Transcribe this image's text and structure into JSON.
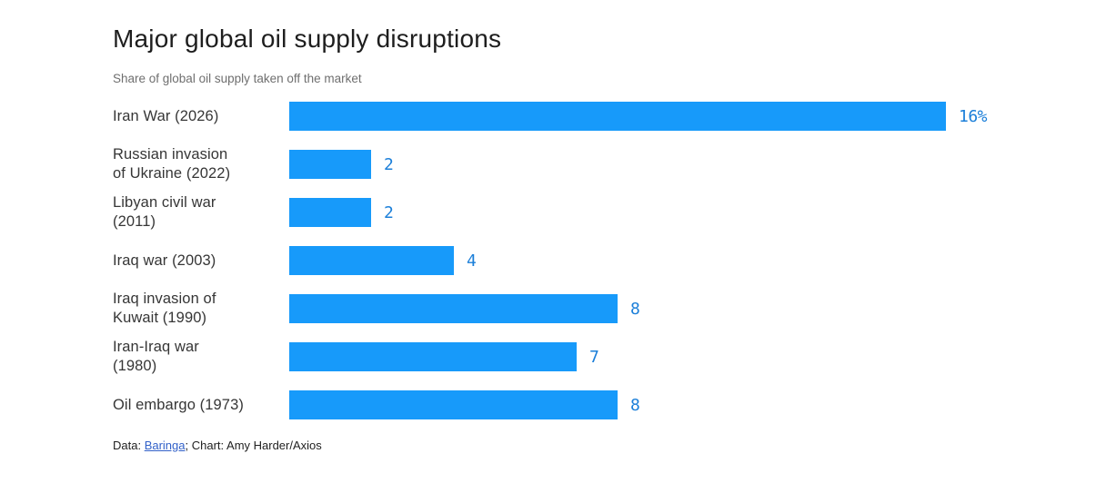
{
  "chart": {
    "title": "Major global oil supply disruptions",
    "subtitle": "Share of global oil supply taken off the market"
  },
  "chart_data": {
    "type": "bar",
    "orientation": "horizontal",
    "title": "Major global oil supply disruptions",
    "subtitle": "Share of global oil supply taken off the market",
    "categories": [
      "Iran War (2026)",
      "Russian invasion of Ukraine (2022)",
      "Libyan civil war (2011)",
      "Iraq war (2003)",
      "Iraq invasion of Kuwait (1990)",
      "Iran-Iraq war (1980)",
      "Oil embargo (1973)"
    ],
    "values": [
      16,
      2,
      2,
      4,
      8,
      7,
      8
    ],
    "value_labels": [
      "16%",
      "2",
      "2",
      "4",
      "8",
      "7",
      "8"
    ],
    "label_lines": [
      [
        "Iran War (2026)"
      ],
      [
        "Russian invasion",
        "of Ukraine (2022)"
      ],
      [
        "Libyan civil war",
        "(2011)"
      ],
      [
        "Iraq war (2003)"
      ],
      [
        "Iraq invasion of",
        "Kuwait (1990)"
      ],
      [
        "Iran-Iraq war",
        "(1980)"
      ],
      [
        "Oil embargo (1973)"
      ]
    ],
    "xlim": [
      0,
      16
    ],
    "grid": false,
    "legend": false,
    "axis_ticks_visible": false,
    "bar_color": "#179afa",
    "value_label_color": "#1b7fd9"
  },
  "footer": {
    "data_prefix": "Data: ",
    "source_link": "Baringa",
    "suffix": "; Chart: Amy Harder/Axios"
  },
  "colors": {
    "background": "#ffffff",
    "title": "#1e1e1e",
    "subtitle": "#6f6f6f",
    "row_label": "#363636",
    "bar": "#179afa",
    "value_label": "#1b7fd9",
    "link": "#3261c9"
  }
}
